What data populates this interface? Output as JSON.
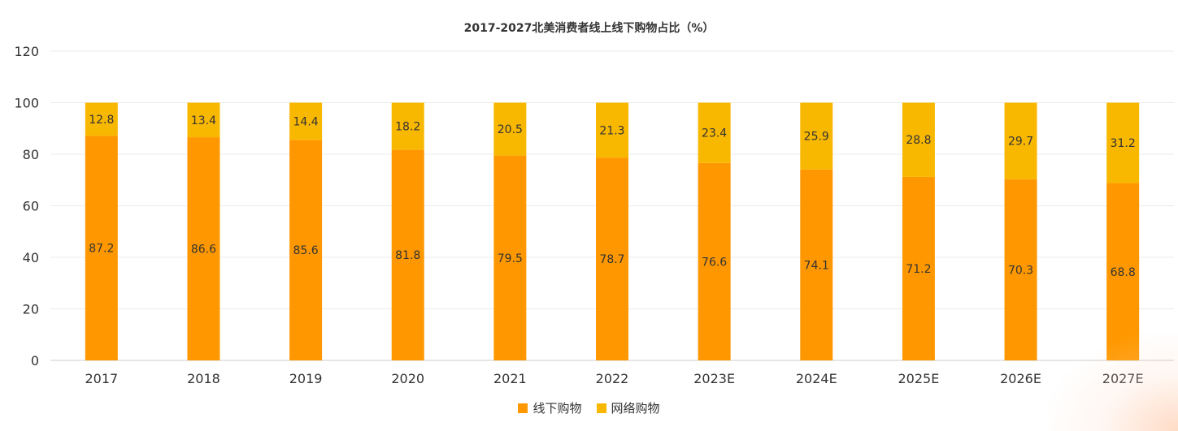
{
  "chart_data": {
    "type": "bar",
    "stacked": true,
    "title": "2017-2027北美消费者线上线下购物占比（%）",
    "categories": [
      "2017",
      "2018",
      "2019",
      "2020",
      "2021",
      "2022",
      "2023E",
      "2024E",
      "2025E",
      "2026E",
      "2027E"
    ],
    "series": [
      {
        "name": "线下购物",
        "color": "#FF9800",
        "values": [
          87.2,
          86.6,
          85.6,
          81.8,
          79.5,
          78.7,
          76.6,
          74.1,
          71.2,
          70.3,
          68.8
        ]
      },
      {
        "name": "网络购物",
        "color": "#F9B800",
        "values": [
          12.8,
          13.4,
          14.4,
          18.2,
          20.5,
          21.3,
          23.4,
          25.9,
          28.8,
          29.7,
          31.2
        ]
      }
    ],
    "ylim": [
      0,
      120
    ],
    "yticks": [
      0,
      20,
      40,
      60,
      80,
      100,
      120
    ],
    "grid": true,
    "legend_position": "bottom"
  }
}
